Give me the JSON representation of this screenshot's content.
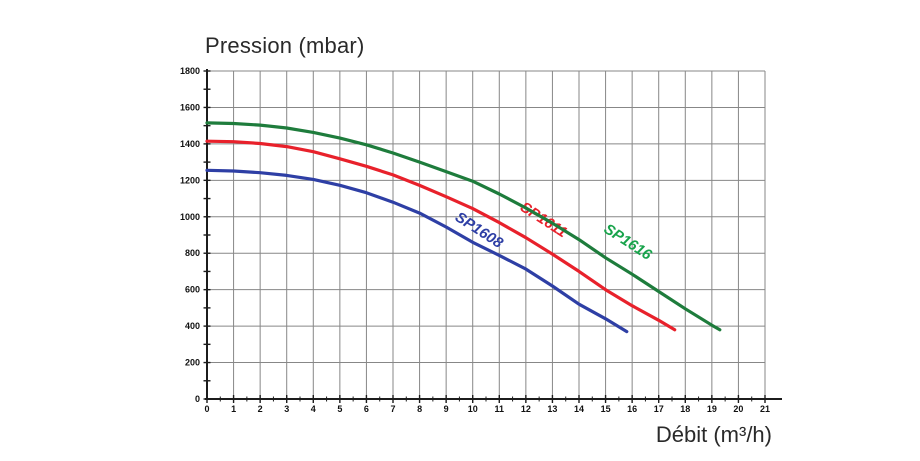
{
  "page": {
    "background": "#ffffff"
  },
  "chart_data": {
    "type": "line",
    "title": "Pression (mbar)",
    "xlabel": "Débit (m³/h)",
    "ylabel": "Pression (mbar)",
    "xlim": [
      0,
      21
    ],
    "ylim": [
      0,
      1800
    ],
    "x_ticks": [
      0,
      1,
      2,
      3,
      4,
      5,
      6,
      7,
      8,
      9,
      10,
      11,
      12,
      13,
      14,
      15,
      16,
      17,
      18,
      19,
      20,
      21
    ],
    "y_ticks": [
      0,
      200,
      400,
      600,
      800,
      1000,
      1200,
      1400,
      1600,
      1800
    ],
    "x_minor_step": 0.5,
    "y_minor_step": 100,
    "grid": true,
    "grid_color": "#878787",
    "axis_color": "#1c1c1c",
    "tick_label_color": "#111111",
    "legend_position": "inline-curve-labels",
    "series": [
      {
        "name": "SP1608",
        "color": "#2e3fa5",
        "points": [
          [
            0,
            1255
          ],
          [
            1,
            1251
          ],
          [
            2,
            1242
          ],
          [
            3,
            1227
          ],
          [
            4,
            1205
          ],
          [
            5,
            1173
          ],
          [
            6,
            1132
          ],
          [
            7,
            1080
          ],
          [
            8,
            1020
          ],
          [
            9,
            944
          ],
          [
            10,
            860
          ],
          [
            11,
            788
          ],
          [
            12,
            713
          ],
          [
            13,
            620
          ],
          [
            14,
            520
          ],
          [
            15,
            440
          ],
          [
            15.8,
            370
          ]
        ],
        "label": {
          "text": "SP1608",
          "x": 9.3,
          "y": 985,
          "rotation": 33,
          "color": "#2e3fa5"
        }
      },
      {
        "name": "SP1611",
        "color": "#e8212b",
        "points": [
          [
            0,
            1415
          ],
          [
            1,
            1412
          ],
          [
            2,
            1402
          ],
          [
            3,
            1385
          ],
          [
            4,
            1357
          ],
          [
            5,
            1318
          ],
          [
            6,
            1277
          ],
          [
            7,
            1230
          ],
          [
            8,
            1172
          ],
          [
            9,
            1110
          ],
          [
            10,
            1045
          ],
          [
            11,
            968
          ],
          [
            12,
            885
          ],
          [
            13,
            795
          ],
          [
            14,
            700
          ],
          [
            15,
            600
          ],
          [
            16,
            512
          ],
          [
            17,
            432
          ],
          [
            17.6,
            380
          ]
        ],
        "label": {
          "text": "SP1611",
          "x": 11.75,
          "y": 1040,
          "rotation": 33,
          "color": "#e8212b"
        }
      },
      {
        "name": "SP1616",
        "color": "#1e7c3c",
        "points": [
          [
            0,
            1515
          ],
          [
            1,
            1512
          ],
          [
            2,
            1503
          ],
          [
            3,
            1487
          ],
          [
            4,
            1463
          ],
          [
            5,
            1432
          ],
          [
            6,
            1395
          ],
          [
            7,
            1350
          ],
          [
            8,
            1300
          ],
          [
            9,
            1248
          ],
          [
            10,
            1195
          ],
          [
            11,
            1125
          ],
          [
            12,
            1048
          ],
          [
            13,
            965
          ],
          [
            14,
            875
          ],
          [
            15,
            775
          ],
          [
            16,
            685
          ],
          [
            17,
            590
          ],
          [
            18,
            495
          ],
          [
            19,
            405
          ],
          [
            19.3,
            380
          ]
        ],
        "label": {
          "text": "SP1616",
          "x": 14.9,
          "y": 920,
          "rotation": 33,
          "color": "#18a34b"
        }
      }
    ]
  }
}
